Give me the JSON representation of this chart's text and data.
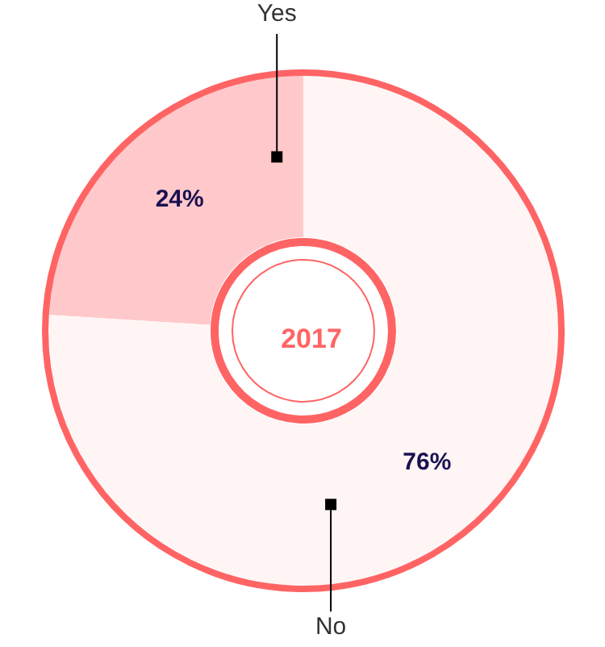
{
  "chart_data": {
    "type": "donut",
    "title": "2017",
    "categories": [
      "Yes",
      "No"
    ],
    "values": [
      24,
      76
    ],
    "colors": [
      "#ffc9cb",
      "#fff5f5"
    ],
    "value_labels": [
      "24%",
      "76%"
    ]
  }
}
